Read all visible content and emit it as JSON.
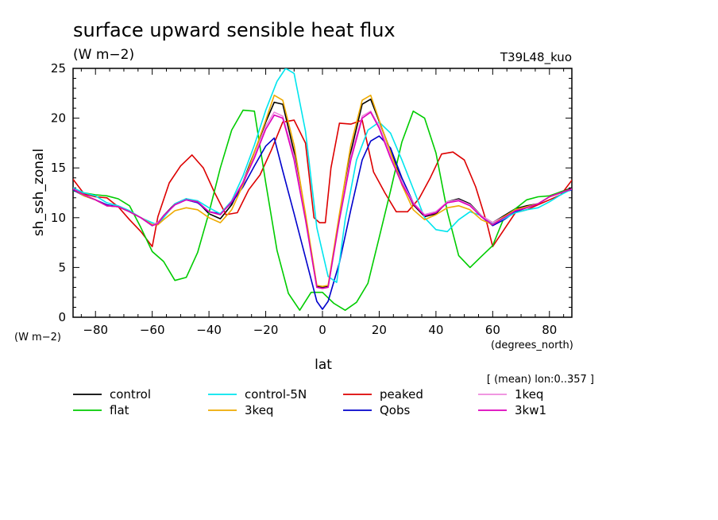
{
  "chart_data": {
    "type": "line",
    "title": "surface upward sensible heat flux",
    "units": "(W m−2)",
    "run_label": "T39L48_kuo",
    "ylabel": "sh_ssh_zonal",
    "y_units": "(W m−2)",
    "xlabel": "lat",
    "x_units": "(degrees_north)",
    "mean_note": "[ (mean) lon:0..357 ]",
    "xlim": [
      -87.9,
      87.9
    ],
    "ylim": [
      0,
      25
    ],
    "xticks": [
      -80,
      -60,
      -40,
      -20,
      0,
      20,
      40,
      60,
      80
    ],
    "yticks": [
      0,
      5,
      10,
      15,
      20,
      25
    ],
    "grid": false,
    "legend_position": "bottom",
    "series": [
      {
        "name": "control",
        "color": "#000000",
        "x": [
          -88,
          -84,
          -80,
          -76,
          -72,
          -68,
          -64,
          -60,
          -58,
          -56,
          -52,
          -48,
          -44,
          -40,
          -36,
          -32,
          -28,
          -24,
          -20,
          -17,
          -14,
          -10,
          -6,
          -2,
          0,
          2,
          6,
          10,
          14,
          17,
          20,
          24,
          28,
          32,
          36,
          40,
          44,
          48,
          52,
          56,
          60,
          64,
          68,
          72,
          76,
          80,
          84,
          88
        ],
        "y": [
          12.9,
          12.2,
          11.8,
          11.2,
          11.1,
          10.6,
          10.0,
          9.3,
          9.5,
          10.2,
          11.4,
          11.9,
          11.6,
          10.4,
          9.9,
          11.3,
          13.6,
          16.6,
          19.6,
          21.6,
          21.4,
          16.6,
          10.1,
          3.1,
          3.0,
          3.1,
          10.1,
          16.6,
          21.4,
          21.9,
          19.7,
          16.7,
          13.6,
          11.3,
          10.1,
          10.4,
          11.6,
          11.9,
          11.4,
          10.2,
          9.5,
          10.2,
          10.9,
          11.2,
          11.4,
          12.1,
          12.6,
          13.0
        ]
      },
      {
        "name": "peaked",
        "color": "#dd0000",
        "x": [
          -88,
          -84,
          -80,
          -76,
          -72,
          -68,
          -64,
          -60,
          -58,
          -54,
          -50,
          -46,
          -42,
          -38,
          -34,
          -30,
          -26,
          -22,
          -18,
          -14,
          -10,
          -6,
          -3,
          -1,
          1,
          3,
          6,
          10,
          14,
          18,
          22,
          26,
          30,
          34,
          38,
          42,
          46,
          50,
          54,
          58,
          60,
          64,
          68,
          72,
          76,
          80,
          84,
          88
        ],
        "y": [
          13.9,
          12.4,
          12.1,
          12.0,
          11.1,
          9.8,
          8.6,
          7.1,
          10.1,
          13.5,
          15.2,
          16.3,
          15.0,
          12.5,
          10.3,
          10.5,
          12.8,
          14.3,
          16.8,
          19.6,
          19.8,
          17.5,
          10.0,
          9.5,
          9.5,
          15.0,
          19.5,
          19.4,
          19.8,
          14.6,
          12.5,
          10.6,
          10.6,
          11.9,
          14.0,
          16.4,
          16.6,
          15.8,
          13.1,
          9.4,
          7.1,
          8.8,
          10.5,
          10.8,
          11.3,
          11.8,
          12.3,
          13.8
        ]
      },
      {
        "name": "flat",
        "color": "#00cc00",
        "x": [
          -88,
          -84,
          -80,
          -76,
          -72,
          -68,
          -64,
          -60,
          -56,
          -52,
          -48,
          -44,
          -40,
          -36,
          -32,
          -28,
          -24,
          -20,
          -16,
          -12,
          -8,
          -4,
          0,
          4,
          8,
          12,
          16,
          20,
          24,
          28,
          32,
          36,
          40,
          44,
          48,
          52,
          56,
          60,
          64,
          68,
          72,
          76,
          80,
          84,
          88
        ],
        "y": [
          12.7,
          12.5,
          12.3,
          12.2,
          11.9,
          11.2,
          9.0,
          6.6,
          5.6,
          3.7,
          4.0,
          6.5,
          10.5,
          15.0,
          18.8,
          20.8,
          20.7,
          13.5,
          6.7,
          2.4,
          0.7,
          2.5,
          2.5,
          1.4,
          0.7,
          1.5,
          3.4,
          8.0,
          12.7,
          17.6,
          20.7,
          20.0,
          16.5,
          10.6,
          6.2,
          5.0,
          6.1,
          7.2,
          10.0,
          10.9,
          11.8,
          12.1,
          12.2,
          12.6,
          12.9
        ]
      },
      {
        "name": "Qobs",
        "color": "#0000cc",
        "x": [
          -88,
          -84,
          -80,
          -76,
          -72,
          -68,
          -64,
          -60,
          -58,
          -56,
          -52,
          -48,
          -44,
          -40,
          -36,
          -32,
          -28,
          -24,
          -20,
          -17,
          -14,
          -10,
          -6,
          -2,
          0,
          2,
          6,
          10,
          14,
          17,
          20,
          24,
          28,
          32,
          36,
          40,
          44,
          48,
          52,
          56,
          60,
          64,
          68,
          72,
          76,
          80,
          84,
          88
        ],
        "y": [
          12.8,
          12.2,
          11.8,
          11.3,
          11.1,
          10.6,
          10.0,
          9.2,
          9.5,
          10.2,
          11.3,
          11.8,
          11.5,
          10.6,
          10.4,
          11.5,
          13.1,
          15.2,
          17.2,
          18.0,
          14.7,
          10.4,
          6.0,
          1.6,
          0.8,
          1.6,
          5.5,
          10.8,
          15.8,
          17.7,
          18.2,
          17.0,
          14.0,
          11.5,
          10.3,
          10.6,
          11.5,
          11.8,
          11.3,
          10.1,
          9.2,
          9.8,
          10.6,
          11.0,
          11.4,
          12.1,
          12.5,
          12.8
        ]
      },
      {
        "name": "control-5N",
        "color": "#00e5ee",
        "x": [
          -88,
          -84,
          -80,
          -76,
          -72,
          -68,
          -64,
          -60,
          -58,
          -56,
          -52,
          -48,
          -44,
          -40,
          -36,
          -32,
          -28,
          -24,
          -20,
          -16,
          -13,
          -10,
          -6,
          -2,
          2,
          5,
          8,
          12,
          16,
          20,
          24,
          28,
          32,
          36,
          40,
          44,
          48,
          52,
          56,
          60,
          64,
          68,
          72,
          76,
          80,
          84,
          88
        ],
        "y": [
          13.0,
          12.5,
          12.2,
          11.5,
          11.2,
          10.7,
          10.0,
          9.5,
          9.3,
          10.0,
          11.4,
          11.9,
          11.7,
          11.0,
          10.4,
          11.7,
          14.2,
          17.3,
          20.8,
          23.7,
          25.0,
          24.5,
          18.7,
          9.0,
          4.1,
          3.5,
          9.8,
          15.8,
          18.8,
          19.6,
          18.5,
          15.8,
          12.9,
          10.0,
          8.8,
          8.6,
          9.8,
          10.6,
          10.2,
          9.4,
          9.9,
          10.5,
          10.8,
          11.0,
          11.6,
          12.3,
          12.9
        ]
      },
      {
        "name": "1keq",
        "color": "#ee88dd",
        "x": [
          -88,
          -84,
          -80,
          -76,
          -72,
          -68,
          -64,
          -60,
          -58,
          -56,
          -52,
          -48,
          -44,
          -40,
          -36,
          -32,
          -28,
          -24,
          -20,
          -17,
          -14,
          -10,
          -6,
          -2,
          0,
          2,
          6,
          10,
          14,
          17,
          20,
          24,
          28,
          32,
          36,
          40,
          44,
          48,
          52,
          56,
          60,
          64,
          68,
          72,
          76,
          80,
          84,
          88
        ],
        "y": [
          12.9,
          12.3,
          11.8,
          11.2,
          11.1,
          10.6,
          10.0,
          9.3,
          9.5,
          10.2,
          11.3,
          11.8,
          11.6,
          10.6,
          10.3,
          11.6,
          13.6,
          16.3,
          19.2,
          20.6,
          20.2,
          16.2,
          10.0,
          3.0,
          2.9,
          3.0,
          10.0,
          16.2,
          20.2,
          20.7,
          19.2,
          16.3,
          13.6,
          11.5,
          10.3,
          10.6,
          11.6,
          11.8,
          11.3,
          10.2,
          9.5,
          10.1,
          10.8,
          11.1,
          11.4,
          12.1,
          12.5,
          12.9
        ]
      },
      {
        "name": "3keq",
        "color": "#eeaa00",
        "x": [
          -88,
          -84,
          -80,
          -76,
          -72,
          -68,
          -64,
          -60,
          -58,
          -56,
          -52,
          -48,
          -44,
          -40,
          -36,
          -32,
          -28,
          -24,
          -20,
          -17,
          -14,
          -10,
          -6,
          -2,
          0,
          2,
          6,
          10,
          14,
          17,
          20,
          24,
          28,
          32,
          36,
          40,
          44,
          48,
          52,
          56,
          60,
          64,
          68,
          72,
          76,
          80,
          84,
          88
        ],
        "y": [
          12.9,
          12.2,
          11.8,
          11.2,
          11.1,
          10.6,
          10.0,
          9.3,
          9.3,
          9.8,
          10.7,
          11.0,
          10.8,
          10.0,
          9.5,
          10.8,
          13.3,
          16.6,
          19.8,
          22.3,
          21.8,
          17.3,
          10.4,
          3.2,
          3.1,
          3.2,
          10.4,
          17.3,
          21.8,
          22.3,
          19.8,
          16.6,
          13.3,
          10.8,
          9.8,
          10.3,
          11.0,
          11.2,
          10.8,
          9.8,
          9.3,
          10.1,
          10.8,
          11.1,
          11.4,
          12.1,
          12.5,
          12.9
        ]
      },
      {
        "name": "3kw1",
        "color": "#dd00bb",
        "x": [
          -88,
          -84,
          -80,
          -76,
          -72,
          -68,
          -64,
          -60,
          -58,
          -56,
          -52,
          -48,
          -44,
          -40,
          -36,
          -32,
          -28,
          -24,
          -20,
          -17,
          -14,
          -10,
          -6,
          -2,
          0,
          2,
          6,
          10,
          14,
          17,
          20,
          24,
          28,
          32,
          36,
          40,
          44,
          48,
          52,
          56,
          60,
          64,
          68,
          72,
          76,
          80,
          84,
          88
        ],
        "y": [
          12.9,
          12.3,
          11.8,
          11.2,
          11.1,
          10.6,
          10.0,
          9.2,
          9.4,
          10.2,
          11.3,
          11.8,
          11.6,
          10.6,
          10.3,
          11.6,
          13.5,
          16.0,
          18.9,
          20.3,
          20.0,
          15.8,
          9.8,
          3.0,
          2.9,
          3.0,
          9.8,
          15.8,
          20.0,
          20.6,
          19.0,
          16.0,
          13.4,
          11.4,
          10.2,
          10.5,
          11.5,
          11.7,
          11.2,
          10.1,
          9.3,
          10.0,
          10.7,
          11.0,
          11.4,
          12.1,
          12.5,
          12.9
        ]
      }
    ]
  }
}
